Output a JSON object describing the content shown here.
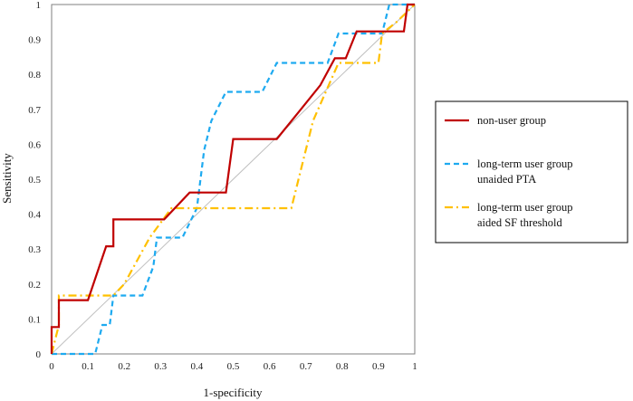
{
  "chart_data": {
    "type": "line",
    "title": "",
    "xlabel": "1-specificity",
    "ylabel": "Sensitivity",
    "xlim": [
      0,
      1
    ],
    "ylim": [
      0,
      1
    ],
    "xticks": [
      "0",
      "0.1",
      "0.2",
      "0.3",
      "0.4",
      "0.5",
      "0.6",
      "0.7",
      "0.8",
      "0.9",
      "1"
    ],
    "yticks": [
      "0",
      "0.1",
      "0.2",
      "0.3",
      "0.4",
      "0.5",
      "0.6",
      "0.7",
      "0.8",
      "0.9",
      "1"
    ],
    "grid": false,
    "legend_position": "right",
    "reference_line": {
      "x": [
        0,
        1
      ],
      "y": [
        0,
        1
      ],
      "color": "#c0c0c0"
    },
    "series": [
      {
        "name": "non-user group",
        "legend_lines": [
          "non-user group"
        ],
        "color": "#c00000",
        "style": "solid",
        "x": [
          0,
          0,
          0.02,
          0.02,
          0.1,
          0.15,
          0.17,
          0.17,
          0.31,
          0.38,
          0.48,
          0.5,
          0.62,
          0.68,
          0.74,
          0.78,
          0.8,
          0.81,
          0.84,
          0.97,
          0.98,
          1
        ],
        "y": [
          0,
          0.077,
          0.077,
          0.154,
          0.154,
          0.308,
          0.308,
          0.385,
          0.385,
          0.462,
          0.462,
          0.615,
          0.615,
          0.692,
          0.769,
          0.846,
          0.846,
          0.846,
          0.923,
          0.923,
          1,
          1
        ]
      },
      {
        "name": "long-term user group unaided PTA",
        "legend_lines": [
          "long-term user group",
          "unaided PTA"
        ],
        "color": "#1eaaf0",
        "style": "dash",
        "x": [
          0,
          0.12,
          0.14,
          0.16,
          0.17,
          0.25,
          0.28,
          0.29,
          0.36,
          0.4,
          0.41,
          0.42,
          0.44,
          0.48,
          0.58,
          0.62,
          0.76,
          0.79,
          0.91,
          0.93,
          1
        ],
        "y": [
          0,
          0,
          0.083,
          0.083,
          0.167,
          0.167,
          0.25,
          0.333,
          0.333,
          0.417,
          0.5,
          0.583,
          0.667,
          0.75,
          0.75,
          0.833,
          0.833,
          0.917,
          0.917,
          1,
          1
        ]
      },
      {
        "name": "long-term user group aided SF threshold",
        "legend_lines": [
          "long-term user group",
          "aided SF threshold"
        ],
        "color": "#ffc000",
        "style": "dashdot",
        "x": [
          0,
          0.02,
          0.02,
          0.17,
          0.2,
          0.27,
          0.33,
          0.35,
          0.6,
          0.66,
          0.72,
          0.79,
          0.81,
          0.9,
          0.91,
          0.95,
          1
        ],
        "y": [
          0,
          0.083,
          0.167,
          0.167,
          0.2,
          0.333,
          0.417,
          0.417,
          0.417,
          0.417,
          0.667,
          0.833,
          0.833,
          0.833,
          0.917,
          0.95,
          1
        ]
      }
    ]
  }
}
